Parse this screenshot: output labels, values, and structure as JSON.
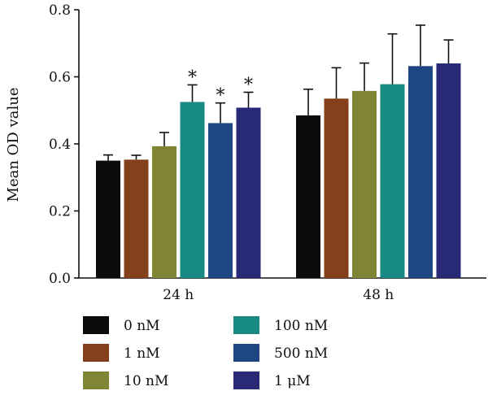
{
  "chart_data": {
    "type": "bar",
    "ylabel": "Mean OD value",
    "xlabel": "",
    "ylim": [
      0,
      0.8
    ],
    "yticks": [
      "0.0",
      "0.2",
      "0.4",
      "0.6",
      "0.8"
    ],
    "categories": [
      "24 h",
      "48 h"
    ],
    "series": [
      {
        "name": "0 nM",
        "color": "#0b0b0b",
        "values": [
          0.35,
          0.485
        ],
        "errors": [
          0.017,
          0.078
        ],
        "significant": [
          false,
          false
        ]
      },
      {
        "name": "1 nM",
        "color": "#83401a",
        "values": [
          0.353,
          0.535
        ],
        "errors": [
          0.013,
          0.092
        ],
        "significant": [
          false,
          false
        ]
      },
      {
        "name": "10 nM",
        "color": "#808533",
        "values": [
          0.393,
          0.558
        ],
        "errors": [
          0.041,
          0.083
        ],
        "significant": [
          false,
          false
        ]
      },
      {
        "name": "100 nM",
        "color": "#178a83",
        "values": [
          0.525,
          0.578
        ],
        "errors": [
          0.051,
          0.15
        ],
        "significant": [
          true,
          false
        ]
      },
      {
        "name": "500 nM",
        "color": "#1e4683",
        "values": [
          0.462,
          0.632
        ],
        "errors": [
          0.06,
          0.122
        ],
        "significant": [
          true,
          false
        ]
      },
      {
        "name": "1 μM",
        "color": "#282a78",
        "values": [
          0.508,
          0.64
        ],
        "errors": [
          0.046,
          0.07
        ],
        "significant": [
          true,
          false
        ]
      }
    ],
    "significance_marker": "*",
    "legend": {
      "placement": "bottom",
      "columns": 2
    },
    "grid": false
  }
}
